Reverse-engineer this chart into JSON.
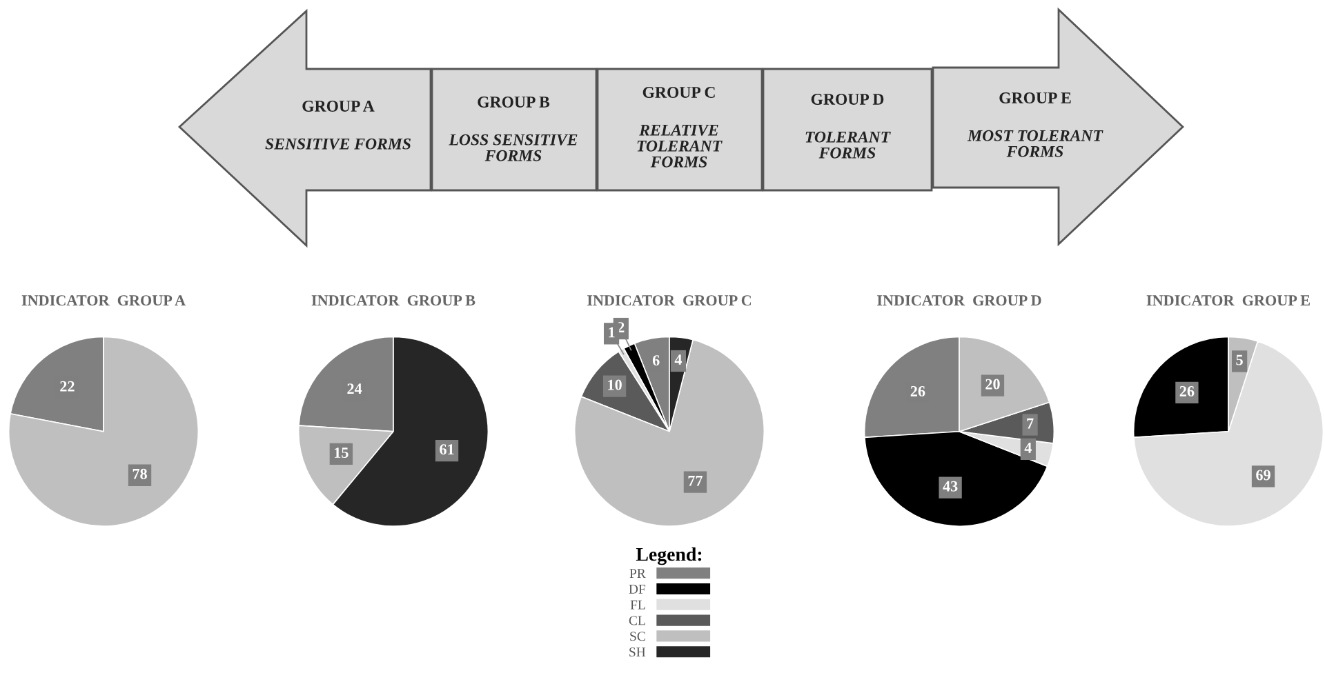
{
  "chart_data": [
    {
      "type": "other",
      "annotations": [
        "GROUP A",
        "SENSITIVE FORMS",
        "GROUP B",
        "LOSS SENSITIVE\nFORMS",
        "GROUP C",
        "RELATIVE\nTOLERANT\nFORMS",
        "GROUP D",
        "TOLERANT\nFORMS",
        "GROUP E",
        "MOST TOLERANT\nFORMS"
      ]
    },
    {
      "type": "pie",
      "title": "INDICATOR  GROUP A",
      "values": [
        22,
        78
      ],
      "colors": [
        "#808080",
        "#bfbfbf"
      ],
      "data_labels": true
    },
    {
      "type": "pie",
      "title": "INDICATOR  GROUP B",
      "values": [
        24,
        15,
        61
      ],
      "colors": [
        "#808080",
        "#bfbfbf",
        "#262626"
      ],
      "data_labels": true
    },
    {
      "type": "pie",
      "title": "INDICATOR  GROUP C",
      "categories": [
        "PR",
        "DF",
        "FL",
        "CL",
        "SC",
        "SH"
      ],
      "values": [
        6,
        2,
        1,
        10,
        77,
        4
      ],
      "colors": [
        "#808080",
        "#000000",
        "#e0e0e0",
        "#5a5a5a",
        "#bfbfbf",
        "#262626"
      ],
      "data_labels": true,
      "legend": "bottom",
      "legend_title": "Legend:"
    },
    {
      "type": "pie",
      "title": "INDICATOR  GROUP D",
      "values": [
        26,
        43,
        4,
        7,
        20
      ],
      "colors": [
        "#808080",
        "#000000",
        "#e0e0e0",
        "#5a5a5a",
        "#bfbfbf"
      ],
      "data_labels": true
    },
    {
      "type": "pie",
      "title": "INDICATOR  GROUP E",
      "values": [
        26,
        69,
        5
      ],
      "colors": [
        "#000000",
        "#e0e0e0",
        "#bfbfbf"
      ],
      "data_labels": true
    }
  ]
}
